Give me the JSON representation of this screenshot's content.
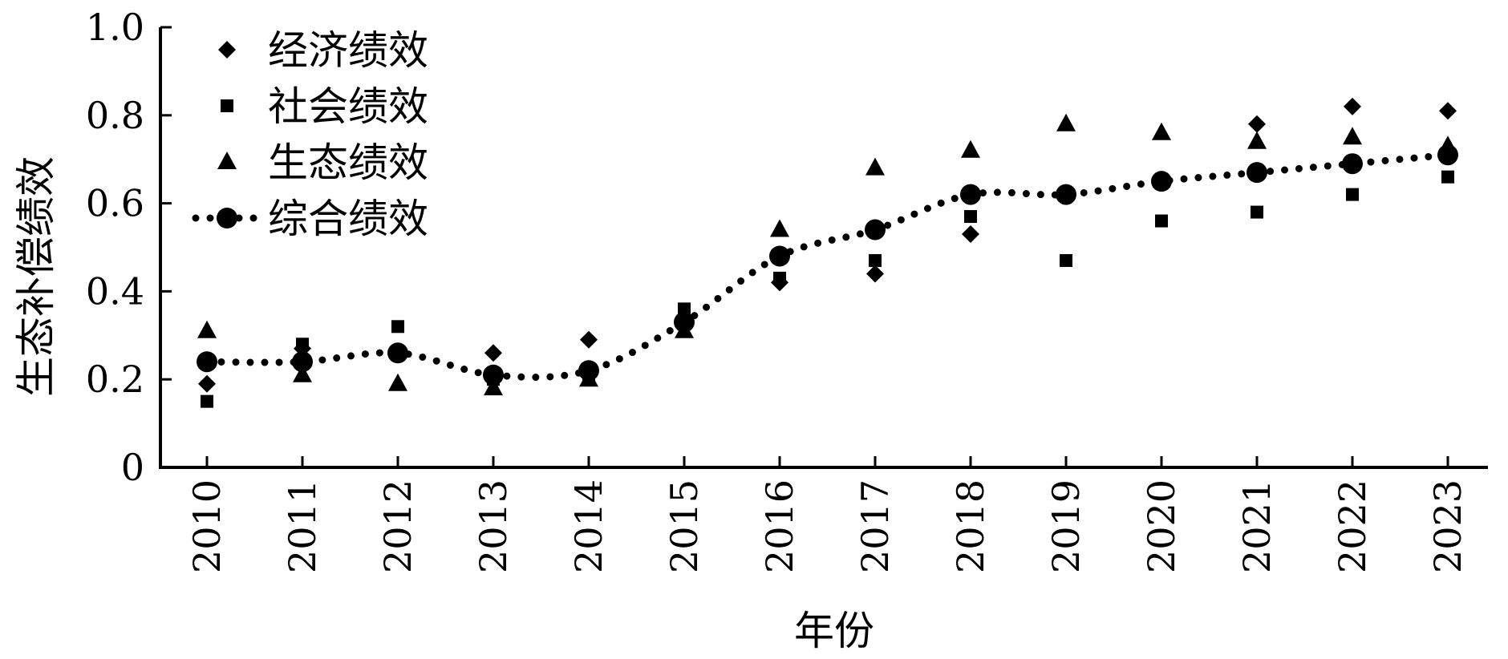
{
  "chart_data": {
    "type": "scatter",
    "xlabel": "年份",
    "ylabel": "生态补偿绩效",
    "ylim": [
      0,
      1.0
    ],
    "yticks": [
      "0",
      "0.2",
      "0.4",
      "0.6",
      "0.8",
      "1.0"
    ],
    "categories": [
      "2010",
      "2011",
      "2012",
      "2013",
      "2014",
      "2015",
      "2016",
      "2017",
      "2018",
      "2019",
      "2020",
      "2021",
      "2022",
      "2023"
    ],
    "legend_position": "top-left",
    "grid": false,
    "series": [
      {
        "name": "经济绩效",
        "marker": "diamond",
        "values": [
          0.19,
          0.27,
          0.26,
          0.26,
          0.29,
          0.34,
          0.42,
          0.44,
          0.53,
          0.62,
          0.65,
          0.78,
          0.82,
          0.81
        ]
      },
      {
        "name": "社会绩效",
        "marker": "square",
        "values": [
          0.15,
          0.28,
          0.32,
          0.2,
          0.21,
          0.36,
          0.43,
          0.47,
          0.57,
          0.47,
          0.56,
          0.58,
          0.62,
          0.66
        ]
      },
      {
        "name": "生态绩效",
        "marker": "triangle",
        "values": [
          0.31,
          0.21,
          0.19,
          0.18,
          0.2,
          0.31,
          0.54,
          0.68,
          0.72,
          0.78,
          0.76,
          0.74,
          0.75,
          0.73
        ]
      },
      {
        "name": "综合绩效",
        "marker": "circle",
        "trendline": "dotted",
        "values": [
          0.24,
          0.24,
          0.26,
          0.21,
          0.22,
          0.33,
          0.48,
          0.54,
          0.62,
          0.62,
          0.65,
          0.67,
          0.69,
          0.71
        ]
      }
    ]
  }
}
